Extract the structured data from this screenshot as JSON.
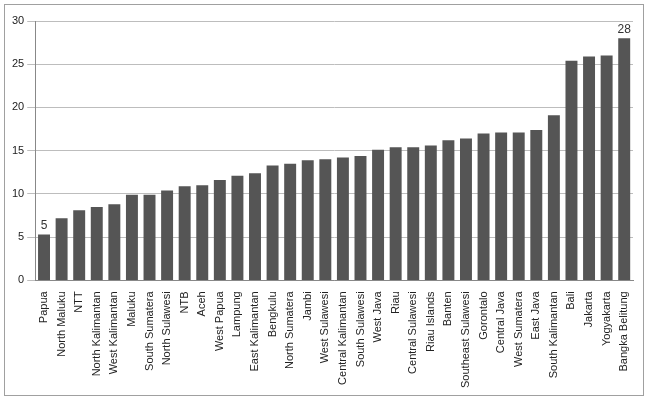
{
  "chart_data": {
    "type": "bar",
    "categories": [
      "Papua",
      "North Maluku",
      "NTT",
      "North Kalimantan",
      "West Kalimantan",
      "Maluku",
      "South Sumatera",
      "North Sulawesi",
      "NTB",
      "Aceh",
      "West Papua",
      "Lampung",
      "East Kalimantan",
      "Bengkulu",
      "North Sumatera",
      "Jambi",
      "West Sulawesi",
      "Central Kalimantan",
      "South Sulawesi",
      "West Java",
      "Riau",
      "Central Sulawesi",
      "Riau Islands",
      "Banten",
      "Southeast Sulawesi",
      "Gorontalo",
      "Central Java",
      "West Sumatera",
      "East Java",
      "South Kalimantan",
      "Bali",
      "Jakarta",
      "Yogyakarta",
      "Bangka Belitung"
    ],
    "values": [
      5.3,
      7.2,
      8.1,
      8.5,
      8.8,
      9.9,
      9.9,
      10.4,
      10.9,
      11.0,
      11.6,
      12.1,
      12.4,
      13.3,
      13.5,
      13.9,
      14.0,
      14.2,
      14.4,
      15.1,
      15.4,
      15.4,
      15.6,
      16.2,
      16.4,
      17.0,
      17.1,
      17.1,
      17.4,
      19.1,
      25.4,
      25.9,
      26.0,
      28.0
    ],
    "value_labels": [
      "5",
      null,
      null,
      null,
      null,
      null,
      null,
      null,
      null,
      null,
      null,
      null,
      null,
      null,
      null,
      null,
      null,
      null,
      null,
      null,
      null,
      null,
      null,
      null,
      null,
      null,
      null,
      null,
      null,
      null,
      null,
      null,
      null,
      "28"
    ],
    "data_labels": true,
    "color": "#555555",
    "ylim": [
      0,
      30
    ],
    "yticks": [
      0,
      5,
      10,
      15,
      20,
      25,
      30
    ],
    "grid": true
  }
}
